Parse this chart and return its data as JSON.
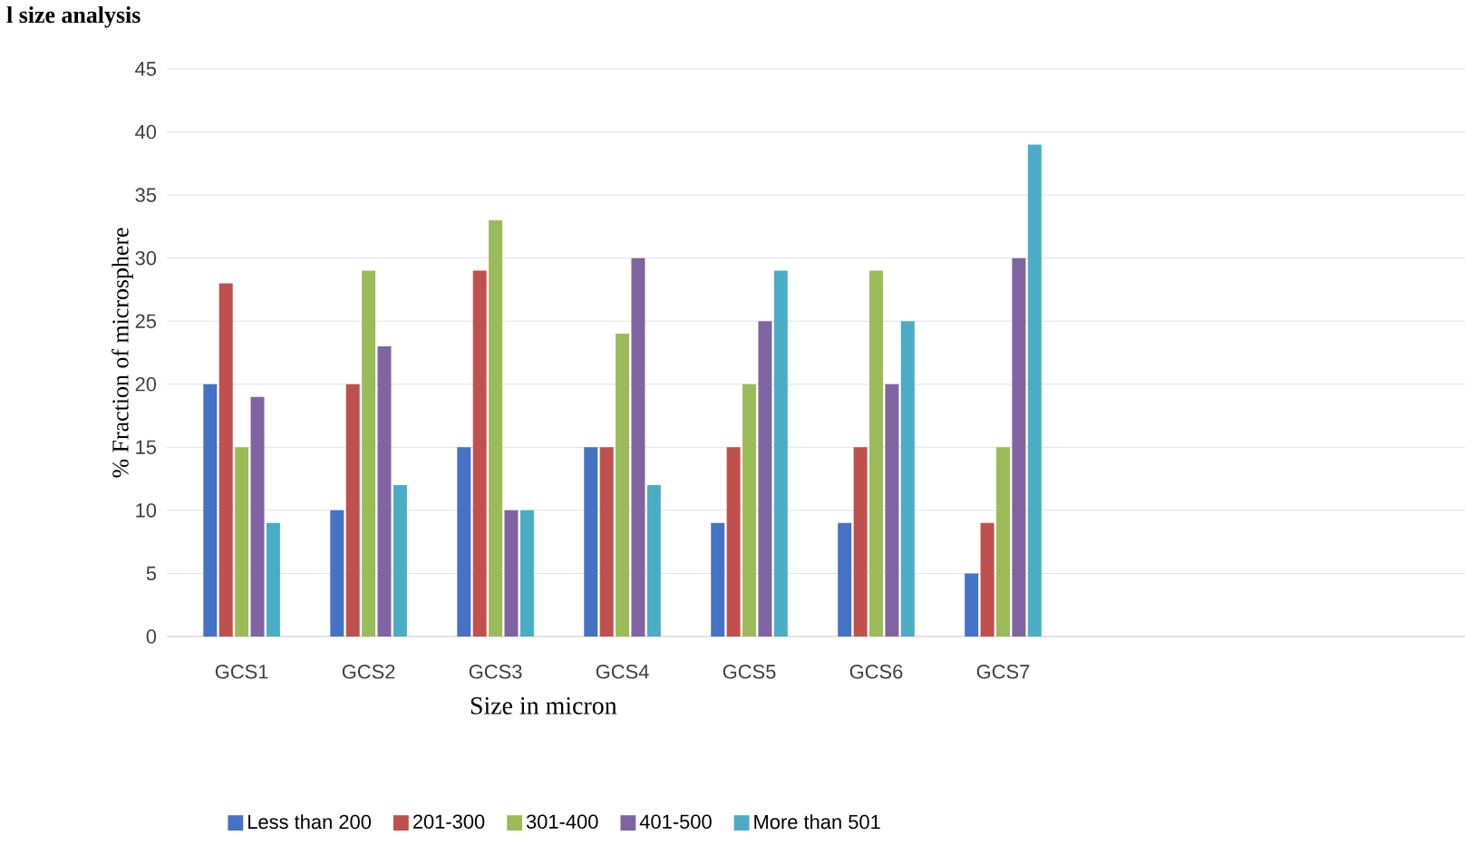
{
  "chart_data": {
    "type": "bar",
    "title": "l size analysis",
    "xlabel": "Size in micron",
    "ylabel": "% Fraction of microsphere",
    "categories": [
      "GCS1",
      "GCS2",
      "GCS3",
      "GCS4",
      "GCS5",
      "GCS6",
      "GCS7"
    ],
    "series": [
      {
        "name": "Less than 200",
        "color": "#4472c4",
        "values": [
          20,
          10,
          15,
          15,
          9,
          9,
          5
        ]
      },
      {
        "name": "201-300",
        "color": "#c0504d",
        "values": [
          28,
          20,
          29,
          15,
          15,
          15,
          9
        ]
      },
      {
        "name": "301-400",
        "color": "#9bbb59",
        "values": [
          15,
          29,
          33,
          24,
          20,
          29,
          15
        ]
      },
      {
        "name": "401-500",
        "color": "#8064a2",
        "values": [
          19,
          23,
          10,
          30,
          25,
          20,
          30
        ]
      },
      {
        "name": "More than 501",
        "color": "#4bacc6",
        "values": [
          9,
          12,
          10,
          12,
          29,
          25,
          39
        ]
      }
    ],
    "ylim": [
      0,
      45
    ],
    "yticks": [
      0,
      5,
      10,
      15,
      20,
      25,
      30,
      35,
      40,
      45
    ],
    "grid": "y",
    "legend": "bottom"
  }
}
